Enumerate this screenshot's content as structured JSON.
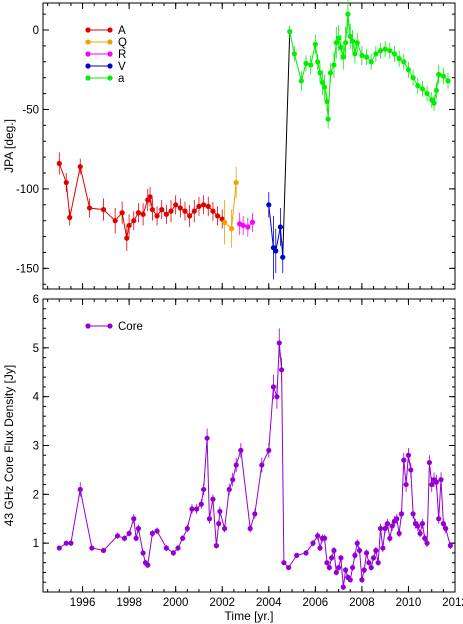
{
  "chart_data": [
    {
      "type": "line",
      "ylabel": "JPA [deg.]",
      "xlim": [
        1994.3,
        2012.0
      ],
      "ylim": [
        -163,
        17
      ],
      "yticks": [
        0,
        -50,
        -100,
        -150
      ],
      "grid": false,
      "legend": "top-left",
      "series": [
        {
          "name": "A",
          "color": "#e00000",
          "x": [
            1995.0,
            1995.3,
            1995.45,
            1995.9,
            1996.3,
            1996.9,
            1997.4,
            1997.7,
            1997.9,
            1998.0,
            1998.2,
            1998.4,
            1998.6,
            1998.8,
            1998.9,
            1999.0,
            1999.2,
            1999.4,
            1999.6,
            1999.8,
            2000.0,
            2000.2,
            2000.4,
            2000.6,
            2000.8,
            2001.0,
            2001.2,
            2001.4,
            2001.6,
            2001.8,
            2002.0
          ],
          "y": [
            -84,
            -96,
            -118,
            -86,
            -112,
            -113,
            -120,
            -115,
            -131,
            -123,
            -120,
            -115,
            -116,
            -107,
            -105,
            -113,
            -117,
            -113,
            -116,
            -114,
            -110,
            -112,
            -114,
            -117,
            -114,
            -111,
            -110,
            -111,
            -114,
            -117,
            -119
          ],
          "err": [
            7,
            6,
            5,
            5,
            6,
            7,
            8,
            7,
            8,
            7,
            6,
            6,
            7,
            7,
            6,
            7,
            6,
            6,
            6,
            7,
            6,
            6,
            6,
            7,
            7,
            6,
            6,
            6,
            6,
            6,
            6
          ]
        },
        {
          "name": "Q",
          "color": "#f0a000",
          "x": [
            2002.1,
            2002.4,
            2002.6
          ],
          "y": [
            -121,
            -125,
            -96
          ],
          "err": [
            14,
            12,
            10
          ]
        },
        {
          "name": "R",
          "color": "#ff00ff",
          "x": [
            2002.75,
            2002.9,
            2003.1,
            2003.3
          ],
          "y": [
            -122,
            -123,
            -124,
            -121
          ],
          "err": [
            7,
            6,
            6,
            6
          ]
        },
        {
          "name": "V",
          "color": "#0000d0",
          "x": [
            2004.0,
            2004.2,
            2004.3,
            2004.5,
            2004.6
          ],
          "y": [
            -110,
            -137,
            -139,
            -124,
            -143
          ],
          "err": [
            8,
            20,
            14,
            12,
            10
          ]
        },
        {
          "name": "a",
          "color": "#00ee00",
          "x": [
            2004.9,
            2005.1,
            2005.4,
            2005.6,
            2005.8,
            2006.0,
            2006.1,
            2006.2,
            2006.3,
            2006.4,
            2006.5,
            2006.55,
            2006.65,
            2006.8,
            2006.9,
            2007.0,
            2007.1,
            2007.2,
            2007.3,
            2007.4,
            2007.5,
            2007.6,
            2007.7,
            2007.8,
            2008.0,
            2008.2,
            2008.4,
            2008.6,
            2008.8,
            2009.0,
            2009.2,
            2009.4,
            2009.6,
            2009.8,
            2010.0,
            2010.2,
            2010.4,
            2010.6,
            2010.8,
            2011.0,
            2011.1,
            2011.2,
            2011.3,
            2011.5,
            2011.7
          ],
          "y": [
            -1,
            -15,
            -32,
            -21,
            -22,
            -9,
            -20,
            -27,
            -33,
            -36,
            -45,
            -56,
            -27,
            -22,
            -8,
            -5,
            -11,
            -17,
            -8,
            10,
            -4,
            -7,
            -15,
            -8,
            -16,
            -17,
            -20,
            -15,
            -13,
            -12,
            -13,
            -15,
            -18,
            -20,
            -25,
            -30,
            -35,
            -37,
            -40,
            -44,
            -46,
            -38,
            -28,
            -29,
            -32
          ],
          "err": [
            4,
            5,
            6,
            5,
            6,
            6,
            5,
            6,
            8,
            8,
            6,
            6,
            6,
            8,
            10,
            8,
            8,
            8,
            10,
            12,
            8,
            7,
            6,
            6,
            6,
            5,
            5,
            5,
            5,
            5,
            5,
            5,
            5,
            5,
            5,
            5,
            5,
            5,
            5,
            5,
            5,
            5,
            6,
            5,
            5
          ]
        }
      ],
      "connector": {
        "color": "#000000",
        "x": [
          2004.6,
          2004.9
        ],
        "y": [
          -143,
          -1
        ]
      }
    },
    {
      "type": "line",
      "xlabel": "Time [yr.]",
      "ylabel": "43 GHz Core Flux Density [Jy]",
      "xlim": [
        1994.3,
        2012.0
      ],
      "ylim": [
        0,
        6
      ],
      "xticks": [
        1996,
        1998,
        2000,
        2002,
        2004,
        2006,
        2008,
        2010,
        2012
      ],
      "yticks": [
        1,
        2,
        3,
        4,
        5,
        6
      ],
      "grid": false,
      "legend": "top-left",
      "series": [
        {
          "name": "Core",
          "color": "#9400d3",
          "x": [
            1995.0,
            1995.3,
            1995.5,
            1995.9,
            1996.4,
            1996.9,
            1997.5,
            1997.8,
            1998.0,
            1998.2,
            1998.3,
            1998.4,
            1998.6,
            1998.7,
            1998.8,
            1999.0,
            1999.2,
            1999.6,
            1999.9,
            2000.1,
            2000.3,
            2000.5,
            2000.7,
            2000.9,
            2001.1,
            2001.2,
            2001.35,
            2001.45,
            2001.6,
            2001.75,
            2001.85,
            2001.9,
            2002.1,
            2002.3,
            2002.45,
            2002.6,
            2002.8,
            2003.2,
            2003.4,
            2003.7,
            2004.0,
            2004.2,
            2004.35,
            2004.45,
            2004.55,
            2004.65,
            2004.85,
            2005.2,
            2005.6,
            2005.9,
            2006.1,
            2006.2,
            2006.3,
            2006.4,
            2006.5,
            2006.6,
            2006.7,
            2006.8,
            2006.9,
            2007.0,
            2007.1,
            2007.2,
            2007.3,
            2007.4,
            2007.5,
            2007.6,
            2007.7,
            2007.8,
            2007.9,
            2008.0,
            2008.1,
            2008.2,
            2008.3,
            2008.4,
            2008.5,
            2008.6,
            2008.7,
            2008.8,
            2008.9,
            2009.0,
            2009.1,
            2009.2,
            2009.3,
            2009.4,
            2009.5,
            2009.6,
            2009.7,
            2009.8,
            2009.9,
            2010.0,
            2010.1,
            2010.2,
            2010.3,
            2010.4,
            2010.5,
            2010.6,
            2010.7,
            2010.8,
            2010.9,
            2011.0,
            2011.1,
            2011.2,
            2011.3,
            2011.4,
            2011.5,
            2011.6,
            2011.8
          ],
          "y": [
            0.9,
            1.0,
            1.0,
            2.1,
            0.9,
            0.85,
            1.15,
            1.1,
            1.2,
            1.5,
            1.1,
            1.3,
            0.8,
            0.6,
            0.55,
            1.2,
            1.25,
            0.9,
            0.8,
            0.9,
            1.1,
            1.3,
            1.7,
            1.7,
            1.8,
            2.1,
            3.15,
            1.5,
            1.9,
            0.95,
            1.4,
            1.65,
            1.3,
            2.1,
            2.3,
            2.6,
            2.9,
            1.3,
            1.6,
            2.6,
            2.9,
            4.2,
            4.0,
            5.1,
            4.55,
            0.6,
            0.5,
            0.75,
            0.8,
            1.0,
            1.15,
            0.9,
            1.1,
            1.1,
            0.6,
            0.5,
            0.7,
            0.85,
            0.4,
            0.5,
            0.7,
            0.1,
            0.45,
            0.3,
            0.25,
            0.5,
            0.75,
            1.0,
            0.85,
            0.25,
            0.45,
            0.8,
            0.6,
            0.5,
            0.7,
            0.85,
            0.6,
            1.3,
            0.9,
            1.3,
            1.4,
            1.1,
            1.35,
            1.45,
            1.5,
            1.2,
            1.6,
            2.7,
            2.2,
            2.8,
            2.5,
            1.6,
            1.4,
            1.35,
            1.2,
            1.4,
            1.1,
            1.0,
            2.65,
            2.2,
            2.3,
            2.25,
            1.5,
            2.3,
            1.4,
            1.3,
            0.95
          ],
          "err": [
            0.05,
            0.05,
            0.05,
            0.15,
            0.05,
            0.05,
            0.06,
            0.06,
            0.06,
            0.1,
            0.06,
            0.08,
            0.06,
            0.06,
            0.05,
            0.07,
            0.07,
            0.06,
            0.06,
            0.06,
            0.06,
            0.08,
            0.1,
            0.1,
            0.1,
            0.12,
            0.2,
            0.1,
            0.1,
            0.06,
            0.08,
            0.1,
            0.08,
            0.12,
            0.14,
            0.15,
            0.15,
            0.08,
            0.1,
            0.15,
            0.15,
            0.25,
            0.25,
            0.3,
            0.25,
            0.05,
            0.05,
            0.05,
            0.06,
            0.07,
            0.08,
            0.06,
            0.08,
            0.08,
            0.06,
            0.06,
            0.06,
            0.07,
            0.06,
            0.06,
            0.06,
            0.06,
            0.06,
            0.06,
            0.06,
            0.06,
            0.07,
            0.08,
            0.07,
            0.06,
            0.06,
            0.07,
            0.06,
            0.06,
            0.06,
            0.07,
            0.06,
            0.1,
            0.08,
            0.1,
            0.1,
            0.08,
            0.1,
            0.1,
            0.1,
            0.08,
            0.1,
            0.15,
            0.15,
            0.15,
            0.15,
            0.1,
            0.1,
            0.1,
            0.08,
            0.1,
            0.08,
            0.08,
            0.15,
            0.15,
            0.15,
            0.15,
            0.1,
            0.15,
            0.1,
            0.1,
            0.07
          ]
        }
      ]
    }
  ]
}
